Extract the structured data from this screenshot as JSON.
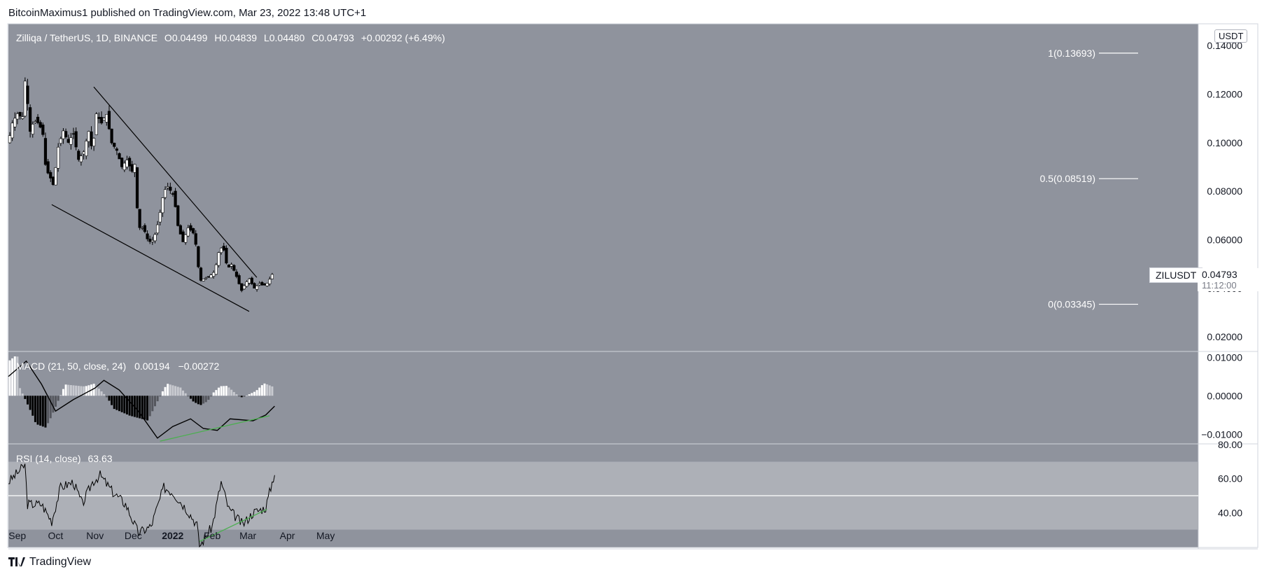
{
  "publish_line": "BitcoinMaximus1 published on TradingView.com, Mar 23, 2022 13:48 UTC+1",
  "footer_brand": "TradingView",
  "header": {
    "symbol": "Zilliqa / TetherUS, 1D, BINANCE",
    "o_label": "O",
    "o": "0.04499",
    "h_label": "H",
    "h": "0.04839",
    "l_label": "L",
    "l": "0.04480",
    "c_label": "C",
    "c": "0.04793",
    "change": "+0.00292 (+6.49%)"
  },
  "currency_button": "USDT",
  "ticker_tag": "ZILUSDT",
  "last_price": "0.04793",
  "countdown": "11:12:00",
  "macd_legend": {
    "title": "MACD (21, 50, close, 24)",
    "v1": "0.00194",
    "v2": "−0.00272"
  },
  "rsi_legend": {
    "title": "RSI (14, close)",
    "value": "63.63"
  },
  "colors": {
    "pane_bg": "#8f939d",
    "rsi_band": "#adb0b7",
    "up_candle": "#ffffff",
    "down_candle": "#000000",
    "divergence": "#4caf50"
  },
  "chart_data": {
    "type": "candlestick",
    "symbol": "ZILUSDT",
    "timeframe": "1D",
    "x_axis_labels": [
      "Sep",
      "Oct",
      "Nov",
      "Dec",
      "2022",
      "Feb",
      "Mar",
      "Apr",
      "May"
    ],
    "price_axis": {
      "ticks": [
        "0.14000",
        "0.12000",
        "0.10000",
        "0.08000",
        "0.06000",
        "0.04000",
        "0.02000"
      ],
      "range": [
        0.014,
        0.149
      ]
    },
    "fib_levels": [
      {
        "label": "1(0.13693)",
        "value": 0.13693
      },
      {
        "label": "0.5(0.08519)",
        "value": 0.08519
      },
      {
        "label": "0(0.03345)",
        "value": 0.03345
      }
    ],
    "wedge": {
      "upper_line": [
        {
          "date": "2021-10-31",
          "price": 0.123
        },
        {
          "date": "2022-03-08",
          "price": 0.0445
        }
      ],
      "lower_line": [
        {
          "date": "2021-09-28",
          "price": 0.0745
        },
        {
          "date": "2022-03-02",
          "price": 0.0305
        }
      ]
    },
    "price_series": [
      [
        "2021-08-25",
        0.1
      ],
      [
        "2021-08-28",
        0.108
      ],
      [
        "2021-09-01",
        0.112
      ],
      [
        "2021-09-05",
        0.11
      ],
      [
        "2021-09-08",
        0.132
      ],
      [
        "2021-09-10",
        0.103
      ],
      [
        "2021-09-14",
        0.109
      ],
      [
        "2021-09-18",
        0.108
      ],
      [
        "2021-09-22",
        0.102
      ],
      [
        "2021-09-24",
        0.082
      ],
      [
        "2021-09-26",
        0.092
      ],
      [
        "2021-09-28",
        0.08
      ],
      [
        "2021-09-30",
        0.085
      ],
      [
        "2021-10-03",
        0.098
      ],
      [
        "2021-10-07",
        0.105
      ],
      [
        "2021-10-11",
        0.1
      ],
      [
        "2021-10-15",
        0.104
      ],
      [
        "2021-10-19",
        0.093
      ],
      [
        "2021-10-23",
        0.096
      ],
      [
        "2021-10-27",
        0.105
      ],
      [
        "2021-10-30",
        0.096
      ],
      [
        "2021-11-02",
        0.112
      ],
      [
        "2021-11-06",
        0.108
      ],
      [
        "2021-11-10",
        0.112
      ],
      [
        "2021-11-14",
        0.1
      ],
      [
        "2021-11-18",
        0.097
      ],
      [
        "2021-11-22",
        0.09
      ],
      [
        "2021-11-26",
        0.093
      ],
      [
        "2021-11-30",
        0.088
      ],
      [
        "2021-12-02",
        0.092
      ],
      [
        "2021-12-05",
        0.065
      ],
      [
        "2021-12-09",
        0.065
      ],
      [
        "2021-12-13",
        0.059
      ],
      [
        "2021-12-17",
        0.06
      ],
      [
        "2021-12-21",
        0.068
      ],
      [
        "2021-12-25",
        0.08
      ],
      [
        "2021-12-28",
        0.082
      ],
      [
        "2022-01-02",
        0.078
      ],
      [
        "2022-01-05",
        0.066
      ],
      [
        "2022-01-09",
        0.059
      ],
      [
        "2022-01-13",
        0.065
      ],
      [
        "2022-01-17",
        0.063
      ],
      [
        "2022-01-20",
        0.056
      ],
      [
        "2022-01-22",
        0.043
      ],
      [
        "2022-01-26",
        0.044
      ],
      [
        "2022-01-30",
        0.045
      ],
      [
        "2022-02-03",
        0.047
      ],
      [
        "2022-02-07",
        0.057
      ],
      [
        "2022-02-10",
        0.056
      ],
      [
        "2022-02-13",
        0.048
      ],
      [
        "2022-02-16",
        0.05
      ],
      [
        "2022-02-20",
        0.045
      ],
      [
        "2022-02-24",
        0.039
      ],
      [
        "2022-02-27",
        0.042
      ],
      [
        "2022-03-02",
        0.044
      ],
      [
        "2022-03-06",
        0.04
      ],
      [
        "2022-03-10",
        0.042
      ],
      [
        "2022-03-13",
        0.041
      ],
      [
        "2022-03-16",
        0.042
      ],
      [
        "2022-03-19",
        0.0445
      ],
      [
        "2022-03-22",
        0.0479
      ]
    ],
    "macd": {
      "axis_ticks": [
        "0.01000",
        "0.00000",
        "−0.01000"
      ],
      "range": [
        -0.0125,
        0.0115
      ],
      "signal_line": [
        [
          "2021-08-25",
          0.005
        ],
        [
          "2021-09-08",
          0.009
        ],
        [
          "2021-09-20",
          0.003
        ],
        [
          "2021-10-01",
          -0.004
        ],
        [
          "2021-10-15",
          -0.001
        ],
        [
          "2021-11-01",
          0.002
        ],
        [
          "2021-11-08",
          0.004
        ],
        [
          "2021-11-20",
          0.0015
        ],
        [
          "2021-12-05",
          -0.004
        ],
        [
          "2021-12-20",
          -0.011
        ],
        [
          "2022-01-01",
          -0.008
        ],
        [
          "2022-01-15",
          -0.006
        ],
        [
          "2022-01-25",
          -0.0085
        ],
        [
          "2022-02-05",
          -0.009
        ],
        [
          "2022-02-15",
          -0.006
        ],
        [
          "2022-03-05",
          -0.0065
        ],
        [
          "2022-03-15",
          -0.005
        ],
        [
          "2022-03-22",
          -0.0027
        ]
      ],
      "divergence": [
        {
          "date": "2021-12-22",
          "value": -0.0118
        },
        {
          "date": "2022-03-18",
          "value": -0.0052
        }
      ]
    },
    "rsi": {
      "axis_ticks": [
        "80.00",
        "60.00",
        "40.00"
      ],
      "range": [
        19.5,
        80.5
      ],
      "band": [
        30,
        70
      ],
      "midline": 50,
      "series": [
        [
          "2021-08-25",
          58
        ],
        [
          "2021-09-07",
          68
        ],
        [
          "2021-09-09",
          45
        ],
        [
          "2021-09-20",
          45
        ],
        [
          "2021-09-28",
          35
        ],
        [
          "2021-10-05",
          55
        ],
        [
          "2021-10-15",
          58
        ],
        [
          "2021-10-22",
          45
        ],
        [
          "2021-10-30",
          58
        ],
        [
          "2021-11-05",
          62
        ],
        [
          "2021-11-15",
          52
        ],
        [
          "2021-11-25",
          45
        ],
        [
          "2021-12-05",
          28
        ],
        [
          "2021-12-15",
          32
        ],
        [
          "2021-12-25",
          55
        ],
        [
          "2022-01-01",
          52
        ],
        [
          "2022-01-12",
          42
        ],
        [
          "2022-01-20",
          33
        ],
        [
          "2022-01-22",
          20
        ],
        [
          "2022-02-01",
          32
        ],
        [
          "2022-02-08",
          58
        ],
        [
          "2022-02-14",
          42
        ],
        [
          "2022-02-25",
          33
        ],
        [
          "2022-03-05",
          40
        ],
        [
          "2022-03-15",
          43
        ],
        [
          "2022-03-22",
          63.63
        ]
      ],
      "divergence": [
        {
          "date": "2022-01-22",
          "value": 23
        },
        {
          "date": "2022-03-16",
          "value": 42
        }
      ]
    }
  }
}
